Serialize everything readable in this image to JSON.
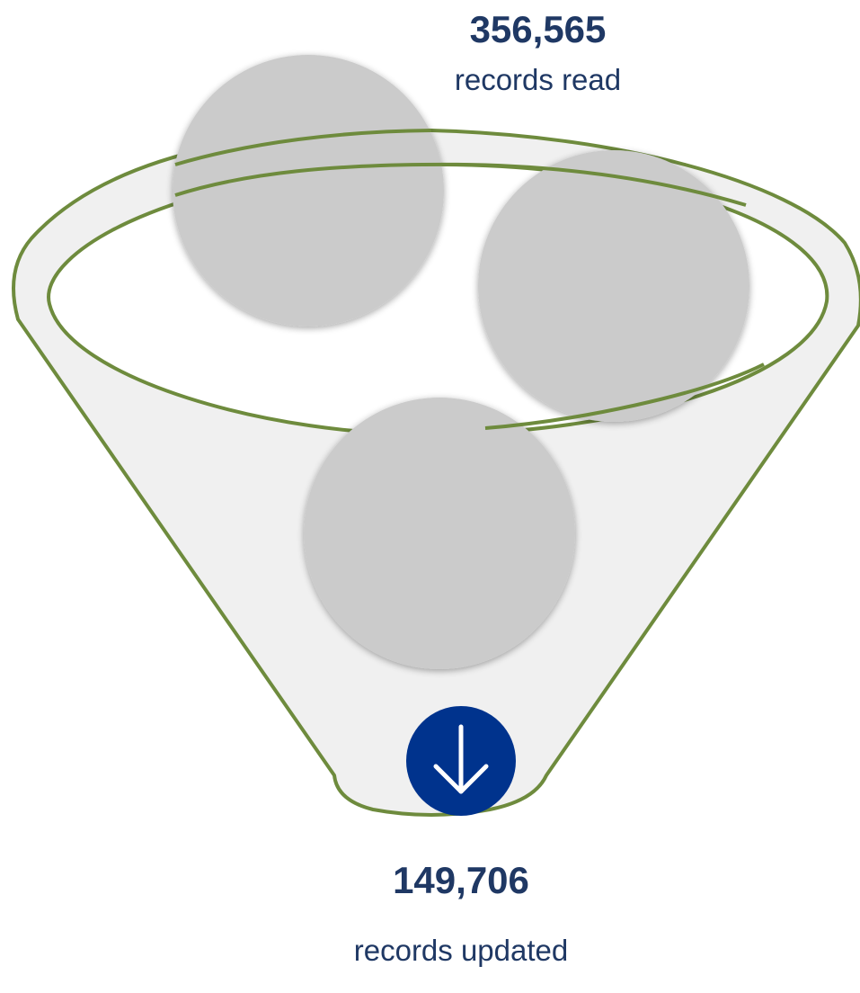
{
  "input": {
    "value": "356,565",
    "label": "records read"
  },
  "output": {
    "value": "149,706",
    "label": "records updated"
  },
  "icons": {
    "output_icon": "arrow-down-icon"
  },
  "colors": {
    "funnel_outline": "#6e8b3d",
    "funnel_fill": "#f0f0f0",
    "ball": "#cbcbcb",
    "text": "#1f3864",
    "badge": "#00338d",
    "badge_icon": "#ffffff"
  }
}
